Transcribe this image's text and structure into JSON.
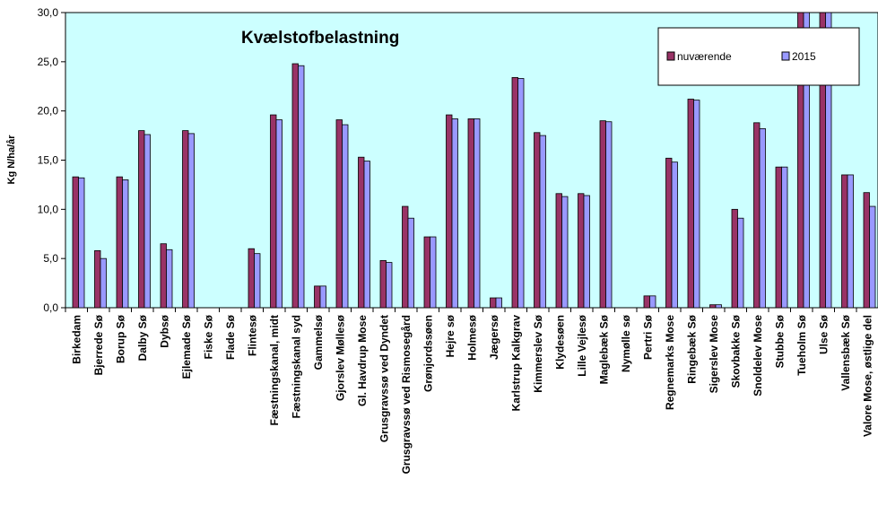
{
  "chart_data": {
    "type": "bar",
    "title": "Kvælstofbelastning",
    "ylabel": "Kg N/ha/år",
    "xlabel": "",
    "ylim": [
      0,
      30
    ],
    "yticks": [
      "0,0",
      "5,0",
      "10,0",
      "15,0",
      "20,0",
      "25,0",
      "30,0"
    ],
    "grid": false,
    "legend_position": "top-right",
    "plot_background": "#ccffff",
    "categories": [
      "Birkedam",
      "Bjerrede Sø",
      "Borup Sø",
      "Dalby Sø",
      "Dybsø",
      "Ejlemade Sø",
      "Fiske Sø",
      "Flade Sø",
      "Flintesø",
      "Fæstningskanal, midt",
      "Fæstningskanal syd",
      "Gammelsø",
      "Gjorslev Møllesø",
      "Gl. Havdrup Mose",
      "Grusgravssø ved Dyndet",
      "Grusgravssø ved Rismosegård",
      "Grønjordssøen",
      "Hejre sø",
      "Holmesø",
      "Jægersø",
      "Karlstrup Kalkgrav",
      "Kimmerslev Sø",
      "Klydesøen",
      "Lille Vejlesø",
      "Maglebæk Sø",
      "Nymølle sø",
      "Pertri Sø",
      "Regnemarks Mose",
      "Ringebæk Sø",
      "Sigerslev Mose",
      "Skovbakke Sø",
      "Snoldelev Mose",
      "Stubbe Sø",
      "Tueholm Sø",
      "Ulse Sø",
      "Vallensbæk Sø",
      "Valore Mose, østlige del"
    ],
    "series": [
      {
        "name": "nuværende",
        "color": "#993366",
        "values": [
          13.3,
          5.8,
          13.3,
          18.0,
          6.5,
          18.0,
          0,
          0,
          6.0,
          19.6,
          24.8,
          2.2,
          19.1,
          15.3,
          4.8,
          10.3,
          7.2,
          19.6,
          19.2,
          1.0,
          23.4,
          17.8,
          11.6,
          11.6,
          19.0,
          0,
          1.2,
          15.2,
          21.2,
          0.3,
          10.0,
          18.8,
          14.3,
          30.0,
          30.0,
          13.5,
          11.7
        ]
      },
      {
        "name": "2015",
        "color": "#9999ff",
        "values": [
          13.2,
          5.0,
          13.0,
          17.6,
          5.9,
          17.7,
          0,
          0,
          5.5,
          19.1,
          24.6,
          2.2,
          18.6,
          14.9,
          4.6,
          9.1,
          7.2,
          19.2,
          19.2,
          1.0,
          23.3,
          17.5,
          11.3,
          11.4,
          18.9,
          0,
          1.2,
          14.8,
          21.1,
          0.3,
          9.1,
          18.2,
          14.3,
          30.0,
          30.0,
          13.5,
          10.3
        ]
      }
    ]
  }
}
